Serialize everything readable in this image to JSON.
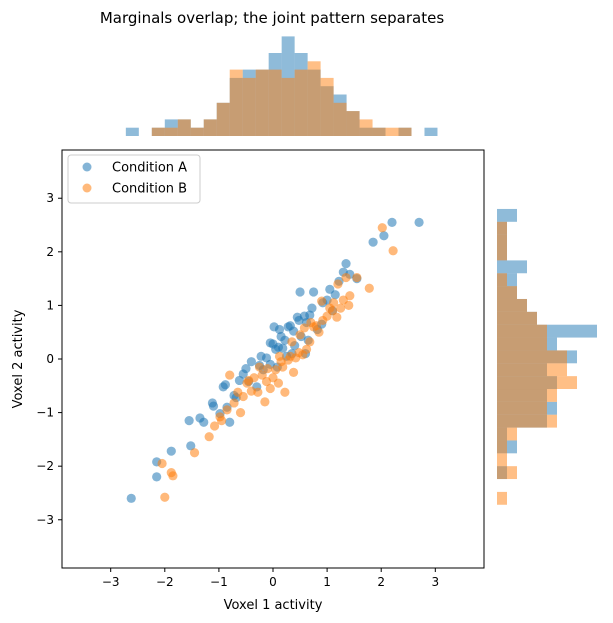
{
  "chart_data": {
    "type": "scatter",
    "title": "Marginals overlap; the joint pattern separates",
    "xlabel": "Voxel 1 activity",
    "ylabel": "Voxel 2 activity",
    "xlim": [
      -3.9,
      3.9
    ],
    "ylim": [
      -3.9,
      3.9
    ],
    "xticks": [
      -3,
      -2,
      -1,
      0,
      1,
      2,
      3
    ],
    "yticks": [
      -3,
      -2,
      -1,
      0,
      1,
      2,
      3
    ],
    "xtick_labels": [
      "−3",
      "−2",
      "−1",
      "0",
      "1",
      "2",
      "3"
    ],
    "ytick_labels": [
      "−3",
      "−2",
      "−1",
      "0",
      "1",
      "2",
      "3"
    ],
    "grid": false,
    "legend_position": "top-left",
    "colors": {
      "A": "#1f77b4",
      "B": "#ff7f0e"
    },
    "series": [
      {
        "name": "Condition A",
        "points": [
          [
            -2.62,
            -2.6
          ],
          [
            -2.15,
            -2.2
          ],
          [
            -2.15,
            -1.92
          ],
          [
            -1.88,
            -1.72
          ],
          [
            -1.52,
            -1.62
          ],
          [
            -1.55,
            -1.15
          ],
          [
            -1.35,
            -1.1
          ],
          [
            -1.28,
            -1.18
          ],
          [
            -1.12,
            -0.82
          ],
          [
            -1.1,
            -0.88
          ],
          [
            -0.92,
            -0.52
          ],
          [
            -0.88,
            -0.48
          ],
          [
            -0.85,
            -0.9
          ],
          [
            -0.8,
            -1.18
          ],
          [
            -0.72,
            -0.68
          ],
          [
            -0.62,
            -0.4
          ],
          [
            -0.55,
            -0.28
          ],
          [
            -0.5,
            -0.18
          ],
          [
            -0.45,
            -0.42
          ],
          [
            -0.4,
            -0.05
          ],
          [
            -0.3,
            -0.52
          ],
          [
            -0.22,
            0.05
          ],
          [
            -0.18,
            -0.2
          ],
          [
            -0.12,
            0.02
          ],
          [
            -0.05,
            -0.1
          ],
          [
            0.0,
            0.28
          ],
          [
            0.02,
            0.6
          ],
          [
            0.05,
            0.18
          ],
          [
            0.08,
            -0.15
          ],
          [
            0.12,
            0.55
          ],
          [
            0.15,
            0.42
          ],
          [
            0.18,
            0.2
          ],
          [
            0.22,
            0.35
          ],
          [
            0.25,
            0.05
          ],
          [
            0.28,
            0.6
          ],
          [
            0.32,
            0.62
          ],
          [
            0.38,
            0.52
          ],
          [
            0.4,
            0.25
          ],
          [
            0.45,
            0.78
          ],
          [
            0.48,
            0.72
          ],
          [
            0.5,
            1.25
          ],
          [
            0.52,
            0.42
          ],
          [
            0.58,
            0.8
          ],
          [
            0.62,
            0.68
          ],
          [
            0.68,
            0.82
          ],
          [
            0.72,
            0.95
          ],
          [
            0.75,
            1.25
          ],
          [
            0.82,
            0.55
          ],
          [
            0.92,
            1.05
          ],
          [
            1.0,
            1.1
          ],
          [
            1.05,
            1.3
          ],
          [
            1.1,
            0.9
          ],
          [
            1.22,
            1.45
          ],
          [
            1.3,
            1.62
          ],
          [
            1.42,
            1.58
          ],
          [
            1.85,
            2.18
          ],
          [
            2.05,
            2.3
          ],
          [
            2.2,
            2.55
          ],
          [
            2.7,
            2.55
          ],
          [
            1.35,
            1.78
          ],
          [
            -0.98,
            -1.02
          ],
          [
            0.65,
            0.35
          ],
          [
            0.35,
            0.1
          ],
          [
            -0.25,
            -0.12
          ],
          [
            1.55,
            1.5
          ],
          [
            -0.05,
            0.3
          ],
          [
            0.6,
            0.1
          ],
          [
            0.9,
            0.65
          ],
          [
            -0.68,
            -0.72
          ],
          [
            1.15,
            1.2
          ],
          [
            0.1,
            0.22
          ]
        ]
      },
      {
        "name": "Condition B",
        "points": [
          [
            -2.05,
            -1.95
          ],
          [
            -1.88,
            -2.12
          ],
          [
            -1.85,
            -2.18
          ],
          [
            -2.0,
            -2.58
          ],
          [
            -1.45,
            -1.75
          ],
          [
            -1.18,
            -1.45
          ],
          [
            -1.08,
            -1.25
          ],
          [
            -0.98,
            -1.08
          ],
          [
            -0.95,
            -1.15
          ],
          [
            -0.85,
            -0.95
          ],
          [
            -0.72,
            -0.82
          ],
          [
            -0.65,
            -0.62
          ],
          [
            -0.6,
            -1.0
          ],
          [
            -0.55,
            -0.7
          ],
          [
            -0.48,
            -0.45
          ],
          [
            -0.4,
            -0.6
          ],
          [
            -0.35,
            -0.35
          ],
          [
            -0.28,
            -0.62
          ],
          [
            -0.2,
            -0.3
          ],
          [
            -0.12,
            -0.42
          ],
          [
            -0.05,
            -0.55
          ],
          [
            0.0,
            -0.35
          ],
          [
            0.05,
            -0.2
          ],
          [
            0.1,
            -0.45
          ],
          [
            0.18,
            -0.15
          ],
          [
            0.22,
            -0.62
          ],
          [
            0.28,
            -0.02
          ],
          [
            0.32,
            0.05
          ],
          [
            0.38,
            -0.25
          ],
          [
            0.42,
            0.02
          ],
          [
            0.48,
            0.12
          ],
          [
            0.55,
            0.08
          ],
          [
            0.62,
            0.18
          ],
          [
            0.68,
            0.32
          ],
          [
            0.75,
            0.6
          ],
          [
            0.8,
            0.62
          ],
          [
            0.85,
            0.5
          ],
          [
            0.92,
            0.72
          ],
          [
            1.0,
            0.8
          ],
          [
            1.05,
            0.95
          ],
          [
            1.1,
            0.9
          ],
          [
            1.18,
            0.78
          ],
          [
            1.25,
            0.95
          ],
          [
            1.3,
            1.1
          ],
          [
            1.35,
            1.52
          ],
          [
            1.42,
            1.18
          ],
          [
            1.55,
            1.52
          ],
          [
            1.78,
            1.32
          ],
          [
            2.02,
            2.45
          ],
          [
            2.22,
            2.02
          ],
          [
            0.58,
            0.58
          ],
          [
            -0.25,
            -0.15
          ],
          [
            0.12,
            0.05
          ],
          [
            0.9,
            1.08
          ],
          [
            1.12,
            1.05
          ],
          [
            -0.8,
            -0.3
          ],
          [
            0.35,
            0.32
          ],
          [
            0.7,
            0.68
          ],
          [
            -0.45,
            -0.4
          ],
          [
            1.4,
            1.0
          ],
          [
            0.15,
            -0.05
          ],
          [
            -0.1,
            -0.18
          ],
          [
            0.5,
            0.45
          ],
          [
            1.2,
            1.4
          ],
          [
            -0.15,
            -0.8
          ]
        ]
      }
    ],
    "marginal_x": {
      "bin_width": 0.24,
      "bins_A": [
        [
          -2.72,
          1
        ],
        [
          -2.24,
          1
        ],
        [
          -2.0,
          2
        ],
        [
          -1.76,
          2
        ],
        [
          -1.52,
          1
        ],
        [
          -1.28,
          2
        ],
        [
          -1.04,
          4
        ],
        [
          -0.8,
          7
        ],
        [
          -0.56,
          8
        ],
        [
          -0.32,
          8
        ],
        [
          -0.08,
          10
        ],
        [
          0.16,
          12
        ],
        [
          0.4,
          10
        ],
        [
          0.64,
          8
        ],
        [
          0.88,
          6
        ],
        [
          1.12,
          5
        ],
        [
          1.36,
          3
        ],
        [
          1.6,
          1
        ],
        [
          1.84,
          1
        ],
        [
          2.32,
          1
        ],
        [
          2.8,
          1
        ]
      ],
      "bins_B": [
        [
          -2.24,
          1
        ],
        [
          -2.0,
          1
        ],
        [
          -1.76,
          2
        ],
        [
          -1.52,
          1
        ],
        [
          -1.28,
          2
        ],
        [
          -1.04,
          4
        ],
        [
          -0.8,
          8
        ],
        [
          -0.56,
          7
        ],
        [
          -0.32,
          8
        ],
        [
          -0.08,
          8
        ],
        [
          0.16,
          7
        ],
        [
          0.4,
          8
        ],
        [
          0.64,
          9
        ],
        [
          0.88,
          7
        ],
        [
          1.12,
          4
        ],
        [
          1.36,
          3
        ],
        [
          1.6,
          2
        ],
        [
          1.84,
          1
        ],
        [
          2.08,
          1
        ],
        [
          2.32,
          1
        ]
      ]
    },
    "marginal_y": {
      "bin_width": 0.24,
      "bins_A": [
        [
          -2.72,
          0
        ],
        [
          -2.24,
          1
        ],
        [
          -2.0,
          0
        ],
        [
          -1.76,
          2
        ],
        [
          -1.52,
          1
        ],
        [
          -1.28,
          5
        ],
        [
          -1.04,
          6
        ],
        [
          -0.8,
          5
        ],
        [
          -0.56,
          6
        ],
        [
          -0.32,
          5
        ],
        [
          -0.08,
          8
        ],
        [
          0.16,
          6
        ],
        [
          0.4,
          10
        ],
        [
          0.64,
          4
        ],
        [
          0.88,
          3
        ],
        [
          1.12,
          2
        ],
        [
          1.36,
          2
        ],
        [
          1.6,
          3
        ],
        [
          1.84,
          1
        ],
        [
          2.08,
          1
        ],
        [
          2.32,
          1
        ],
        [
          2.56,
          2
        ]
      ],
      "bins_B": [
        [
          -2.72,
          1
        ],
        [
          -2.24,
          2
        ],
        [
          -2.0,
          1
        ],
        [
          -1.76,
          1
        ],
        [
          -1.52,
          2
        ],
        [
          -1.28,
          6
        ],
        [
          -1.04,
          5
        ],
        [
          -0.8,
          6
        ],
        [
          -0.56,
          8
        ],
        [
          -0.32,
          7
        ],
        [
          -0.08,
          7
        ],
        [
          0.16,
          5
        ],
        [
          0.4,
          5
        ],
        [
          0.64,
          4
        ],
        [
          0.88,
          3
        ],
        [
          1.12,
          2
        ],
        [
          1.36,
          1
        ],
        [
          1.6,
          0
        ],
        [
          1.84,
          1
        ],
        [
          2.08,
          1
        ],
        [
          2.32,
          1
        ],
        [
          2.56,
          0
        ]
      ]
    }
  }
}
